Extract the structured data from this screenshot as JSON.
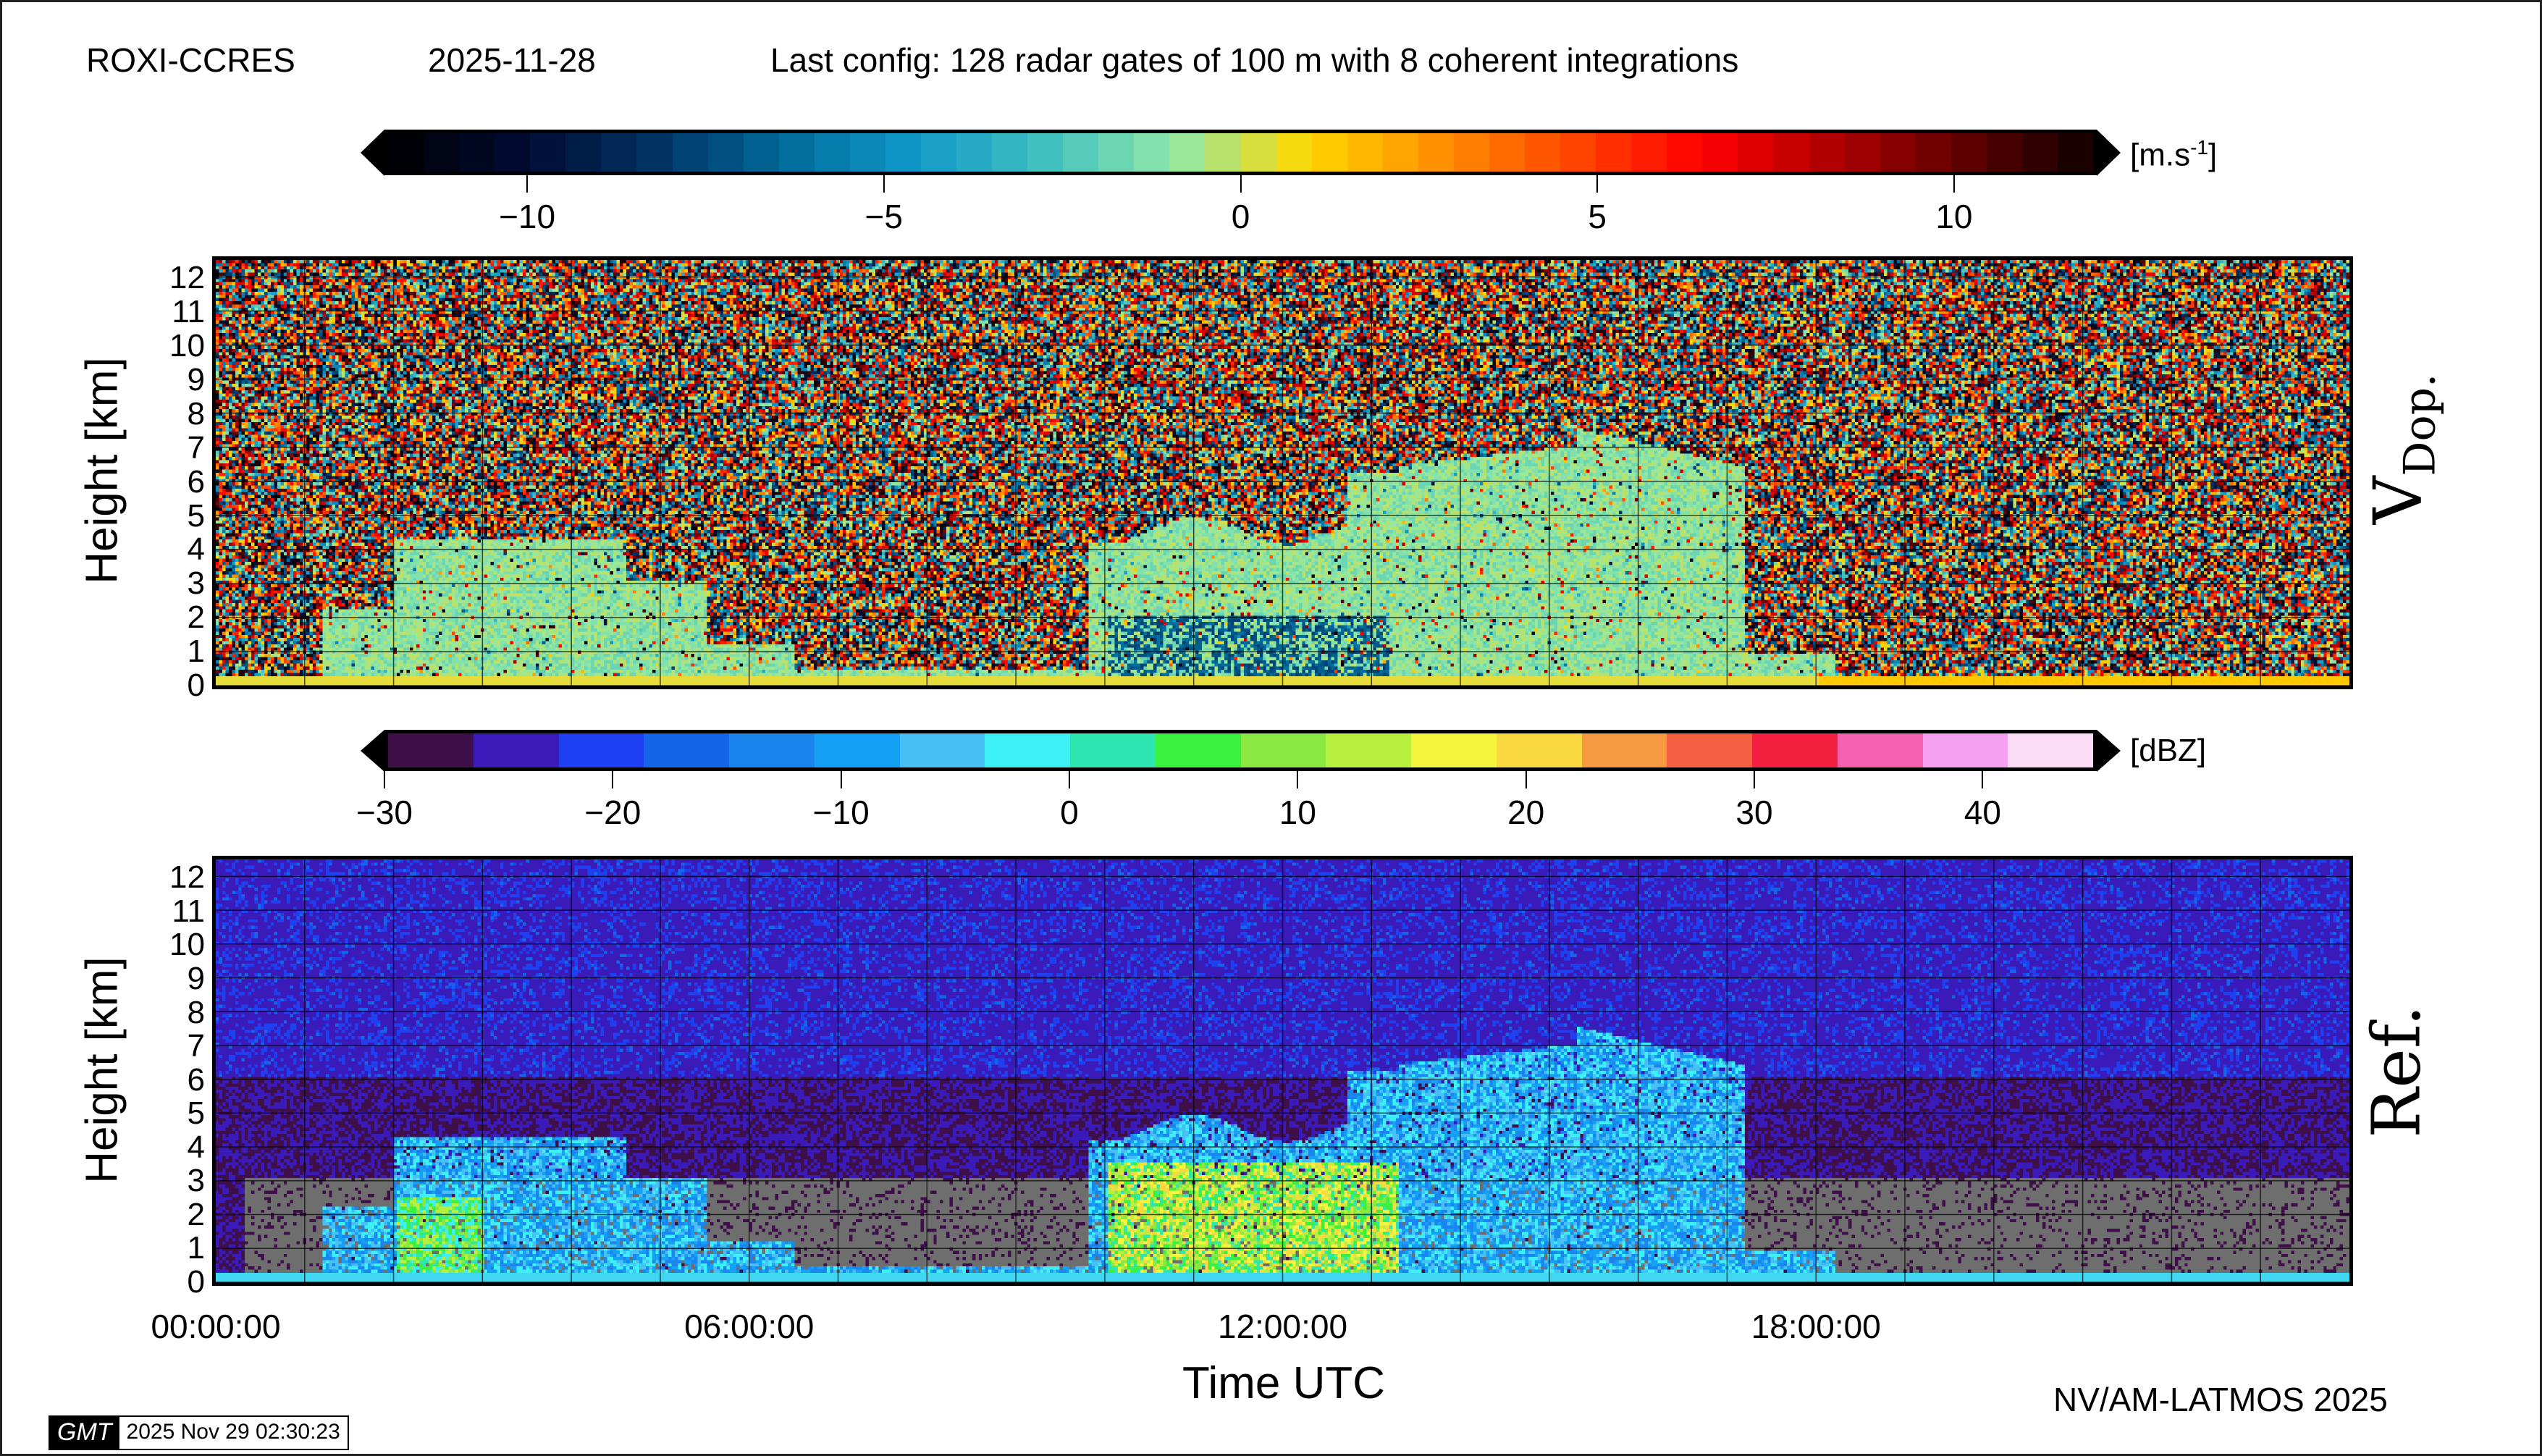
{
  "header": {
    "station": "ROXI-CCRES",
    "date": "2025-11-28",
    "config": "Last config: 128 radar gates of 100 m with 8 coherent integrations"
  },
  "chart_data": [
    {
      "type": "heatmap",
      "side_label": "V",
      "side_label_sub": "Dop.",
      "ylabel": "Height [km]",
      "ylim": [
        0,
        12.5
      ],
      "yticks": [
        "0",
        "1",
        "2",
        "3",
        "4",
        "5",
        "6",
        "7",
        "8",
        "9",
        "10",
        "11",
        "12"
      ],
      "colorbar": {
        "unit": "[m.s",
        "unit_sup": "-1",
        "unit_end": "]",
        "range": [
          -12,
          12
        ],
        "ticks": [
          "−10",
          "−5",
          "0",
          "5",
          "10"
        ],
        "tick_values": [
          -10,
          -5,
          0,
          5,
          10
        ],
        "anchors": [
          "#000000",
          "#000a30",
          "#003060",
          "#006a9a",
          "#1098c8",
          "#40c0c0",
          "#90e8a8",
          "#ffd800",
          "#ff9000",
          "#ff4800",
          "#ff0000",
          "#b00000",
          "#600000",
          "#100000"
        ]
      }
    },
    {
      "type": "heatmap",
      "side_label": "Ref.",
      "ylabel": "Height [km]",
      "xlabel": "Time UTC",
      "ylim": [
        0,
        12.5
      ],
      "xlim": [
        "00:00:00",
        "24:00:00"
      ],
      "xticks": [
        "00:00:00",
        "06:00:00",
        "12:00:00",
        "18:00:00"
      ],
      "yticks": [
        "0",
        "1",
        "2",
        "3",
        "4",
        "5",
        "6",
        "7",
        "8",
        "9",
        "10",
        "11",
        "12"
      ],
      "colorbar": {
        "unit": "[dBZ]",
        "range": [
          -30,
          45
        ],
        "ticks": [
          "−30",
          "−20",
          "−10",
          "0",
          "10",
          "20",
          "30",
          "40"
        ],
        "tick_values": [
          -30,
          -20,
          -10,
          0,
          10,
          20,
          30,
          40
        ],
        "colors": [
          "#3e0f48",
          "#3a1ab8",
          "#1e40f0",
          "#1565e8",
          "#1a85ee",
          "#14a0f5",
          "#48c0f5",
          "#3cf0f5",
          "#2ee6b0",
          "#3cf040",
          "#8ae840",
          "#b8f040",
          "#f5f540",
          "#fad840",
          "#f59a40",
          "#f56040",
          "#f52040",
          "#f560b0",
          "#f5a0f0",
          "#fadcf5"
        ]
      }
    }
  ],
  "footer": {
    "credit": "NV/AM-LATMOS 2025",
    "gmt_logo": "GMT",
    "timestamp": "2025 Nov 29 02:30:23"
  }
}
